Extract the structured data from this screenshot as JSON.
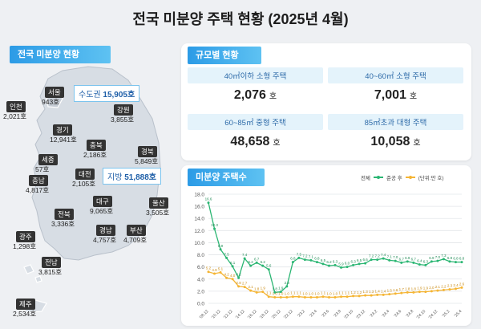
{
  "title": "전국 미분양 주택 현황 (2025년 4월)",
  "map_section": {
    "heading": "전국 미분양 현황",
    "metro_callout": {
      "label": "수도권",
      "value": "15,905호"
    },
    "local_callout": {
      "label": "지방",
      "value": "51,888호"
    },
    "regions": [
      {
        "name": "인천",
        "value": "2,021호"
      },
      {
        "name": "서울",
        "value": "943호"
      },
      {
        "name": "강원",
        "value": "3,855호"
      },
      {
        "name": "경기",
        "value": "12,941호"
      },
      {
        "name": "충북",
        "value": "2,186호"
      },
      {
        "name": "경북",
        "value": "5,849호"
      },
      {
        "name": "세종",
        "value": "57호"
      },
      {
        "name": "충남",
        "value": "4,817호"
      },
      {
        "name": "대전",
        "value": "2,105호"
      },
      {
        "name": "대구",
        "value": "9,065호"
      },
      {
        "name": "울산",
        "value": "3,505호"
      },
      {
        "name": "전북",
        "value": "3,336호"
      },
      {
        "name": "경남",
        "value": "4,757호"
      },
      {
        "name": "부산",
        "value": "4,709호"
      },
      {
        "name": "광주",
        "value": "1,298호"
      },
      {
        "name": "전남",
        "value": "3,815호"
      },
      {
        "name": "제주",
        "value": "2,534호"
      }
    ]
  },
  "size_section": {
    "heading": "규모별 현황",
    "cells": [
      {
        "label": "40㎡이하 소형 주택",
        "value": "2,076",
        "unit": "호"
      },
      {
        "label": "40~60㎡ 소형 주택",
        "value": "7,001",
        "unit": "호"
      },
      {
        "label": "60~85㎡ 중형 주택",
        "value": "48,658",
        "unit": "호"
      },
      {
        "label": "85㎡초과 대형 주택",
        "value": "10,058",
        "unit": "호"
      }
    ]
  },
  "chart_section": {
    "heading": "미분양 주택수",
    "legend_total": "전체",
    "legend_completed": "준공 후",
    "unit_note": "(단위:만 호)"
  },
  "colors": {
    "total": "#2bb673",
    "completed": "#f5b534",
    "heading_bg": "#2c9be6",
    "map_fill": "#d7dde4",
    "map_stroke": "#ffffff"
  },
  "chart_data": {
    "type": "line",
    "ylim": [
      0,
      18
    ],
    "yticks": [
      0,
      2,
      4,
      6,
      8,
      10,
      12,
      14,
      16,
      18
    ],
    "ytick_labels": [
      "0.0",
      "2.0",
      "4.0",
      "6.0",
      "8.0",
      "10.0",
      "12.0",
      "14.0",
      "16.0",
      "18.0"
    ],
    "x_labels": [
      "'08.12",
      "'10.12",
      "'12.12",
      "'14.12",
      "'16.12",
      "'18.12",
      "'20.12",
      "'22.12",
      "'23.2",
      "'23.4",
      "'23.6",
      "'23.8",
      "'23.10",
      "'23.12",
      "'24.2",
      "'24.4",
      "'24.6",
      "'24.8",
      "'24.10",
      "'24.12",
      "'25.2",
      "'25.4"
    ],
    "series": [
      {
        "name": "전체",
        "values": [
          16.6,
          12.3,
          8.9,
          7.5,
          6.1,
          4.2,
          7.4,
          6.2,
          6.7,
          6.2,
          5.6,
          1.8,
          1.9,
          2.8,
          6.8,
          7.5,
          7.2,
          7.1,
          6.8,
          6.5,
          6.2,
          6.3,
          5.9,
          6.0,
          6.3,
          6.5,
          6.6,
          7.2,
          7.2,
          7.4,
          7.1,
          7.0,
          6.7,
          6.9,
          6.7,
          6.4,
          6.3,
          6.9,
          7.0,
          7.3,
          6.9,
          6.8,
          6.8
        ],
        "point_labels": [
          "16.6",
          "12.3",
          "8.9",
          "7.5",
          "6.1",
          "4.2",
          "7.4",
          "6.2",
          "6.7",
          "6.2",
          "5.6",
          "1.8",
          "1.9",
          "2.8",
          "6.8",
          "7.5",
          "7.2",
          "7.1",
          "6.8",
          "6.5",
          "6.2",
          "6.3",
          "5.9",
          "6.0",
          "6.3",
          "6.5",
          "6.6",
          "7.2",
          "7.2",
          "7.4",
          "7.1",
          "7.0",
          "6.7",
          "6.9",
          "6.7",
          "6.4",
          "6.3",
          "6.9",
          "7.0",
          "7.3",
          "6.9",
          "6.8",
          "6.8"
        ]
      },
      {
        "name": "준공 후",
        "values": [
          5.2,
          4.9,
          5.1,
          4.2,
          4.0,
          2.8,
          2.7,
          2.1,
          1.8,
          1.9,
          1.1,
          1.0,
          1.0,
          1.0,
          1.1,
          1.1,
          1.0,
          1.0,
          1.0,
          1.1,
          1.0,
          1.0,
          1.1,
          1.1,
          1.2,
          1.2,
          1.3,
          1.3,
          1.4,
          1.4,
          1.5,
          1.6,
          1.7,
          1.8,
          1.8,
          1.9,
          1.9,
          2.0,
          2.1,
          2.2,
          2.3,
          2.4,
          2.6
        ],
        "point_labels": [
          "5.2",
          "4.9",
          "5.1",
          "4.2",
          "4.0",
          "2.8",
          "2.7",
          "2.1",
          "1.8",
          "1.9",
          "1.1",
          "1.0",
          "1.0",
          "1.0",
          "1.1",
          "1.1",
          "1.0",
          "1.0",
          "1.0",
          "1.1",
          "1.0",
          "1.0",
          "1.1",
          "1.1",
          "1.2",
          "1.2",
          "1.3",
          "1.3",
          "1.4",
          "1.4",
          "1.5",
          "1.6",
          "1.7",
          "1.8",
          "1.8",
          "1.9",
          "1.9",
          "2.0",
          "2.1",
          "2.2",
          "2.3",
          "2.4",
          "2.6"
        ]
      }
    ]
  }
}
